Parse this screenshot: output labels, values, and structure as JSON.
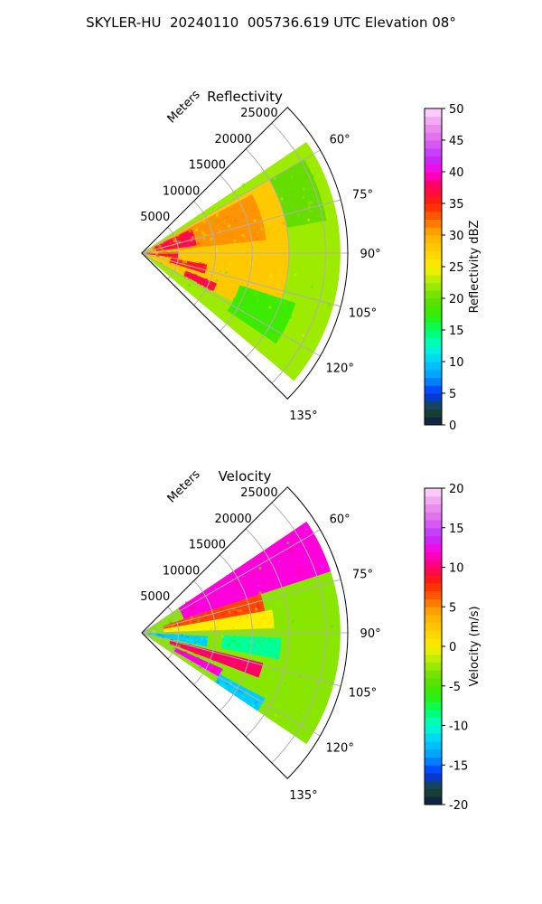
{
  "figure_title": "SKYLER-HU  20240110  005736.619 UTC Elevation 08°",
  "chart_data": [
    {
      "type": "heatmap",
      "subtype": "polar-sector (PPI sweep)",
      "title": "Reflectivity",
      "range_label": "Meters",
      "range_ticks": [
        5000,
        10000,
        15000,
        20000,
        25000
      ],
      "range_max": 28000,
      "azimuth_ticks_deg": [
        60,
        75,
        90,
        105,
        120,
        135
      ],
      "azimuth_range_deg": [
        45,
        135
      ],
      "grid": true,
      "colorbar": {
        "label": "Reflectivity dBZ",
        "min": 0,
        "max": 50,
        "ticks": [
          0,
          5,
          10,
          15,
          20,
          25,
          30,
          35,
          40,
          45,
          50
        ],
        "stops": [
          [
            0,
            "#0a1a4a"
          ],
          [
            2.5,
            "#1a4a2a"
          ],
          [
            5,
            "#0033ff"
          ],
          [
            7.5,
            "#0099ff"
          ],
          [
            10,
            "#00ccff"
          ],
          [
            12.5,
            "#00ffcc"
          ],
          [
            15,
            "#00ff66"
          ],
          [
            17.5,
            "#33ee00"
          ],
          [
            20,
            "#66dd00"
          ],
          [
            22.5,
            "#aaee00"
          ],
          [
            25,
            "#ffee00"
          ],
          [
            30,
            "#ffb000"
          ],
          [
            35,
            "#ff2200"
          ],
          [
            38,
            "#ff0066"
          ],
          [
            40,
            "#ff00dd"
          ],
          [
            42.5,
            "#bb33ff"
          ],
          [
            45,
            "#dd66ee"
          ],
          [
            47.5,
            "#ee99ee"
          ],
          [
            50,
            "#ffddff"
          ]
        ]
      },
      "echo_regions": [
        {
          "value": 22,
          "r": [
            0,
            27000
          ],
          "az": [
            56,
            130
          ]
        },
        {
          "value": 28,
          "r": [
            0,
            20000
          ],
          "az": [
            60,
            118
          ]
        },
        {
          "value": 31,
          "r": [
            1500,
            17000
          ],
          "az": [
            62,
            84
          ]
        },
        {
          "value": 37,
          "r": [
            2000,
            7500
          ],
          "az": [
            64,
            82
          ]
        },
        {
          "value": 36,
          "r": [
            0,
            5000
          ],
          "az": [
            88,
            98
          ]
        },
        {
          "value": 36,
          "r": [
            4000,
            9000
          ],
          "az": [
            100,
            108
          ]
        },
        {
          "value": 37,
          "r": [
            6500,
            11000
          ],
          "az": [
            112,
            118
          ]
        },
        {
          "value": 18,
          "r": [
            14000,
            22000
          ],
          "az": [
            108,
            124
          ]
        },
        {
          "value": 20,
          "r": [
            20000,
            25500
          ],
          "az": [
            60,
            80
          ]
        }
      ]
    },
    {
      "type": "heatmap",
      "subtype": "polar-sector (PPI sweep)",
      "title": "Velocity",
      "range_label": "Meters",
      "range_ticks": [
        5000,
        10000,
        15000,
        20000,
        25000
      ],
      "range_max": 28000,
      "azimuth_ticks_deg": [
        60,
        75,
        90,
        105,
        120,
        135
      ],
      "azimuth_range_deg": [
        45,
        135
      ],
      "grid": true,
      "colorbar": {
        "label": "Velocity (m/s)",
        "min": -20,
        "max": 20,
        "ticks": [
          -20,
          -15,
          -10,
          -5,
          0,
          5,
          10,
          15,
          20
        ],
        "stops": [
          [
            -20,
            "#0a1a4a"
          ],
          [
            -18,
            "#1a4a2a"
          ],
          [
            -16,
            "#0033ff"
          ],
          [
            -14,
            "#0099ff"
          ],
          [
            -12,
            "#00ccff"
          ],
          [
            -10,
            "#00ffcc"
          ],
          [
            -8,
            "#00ff66"
          ],
          [
            -6,
            "#33ee00"
          ],
          [
            -4,
            "#66dd00"
          ],
          [
            -2,
            "#aaee00"
          ],
          [
            0,
            "#ffee00"
          ],
          [
            4,
            "#ffb000"
          ],
          [
            8,
            "#ff2200"
          ],
          [
            10,
            "#ff0066"
          ],
          [
            12,
            "#ff00dd"
          ],
          [
            14,
            "#bb33ff"
          ],
          [
            16,
            "#dd66ee"
          ],
          [
            18,
            "#ee99ee"
          ],
          [
            20,
            "#ffddff"
          ]
        ]
      },
      "echo_regions": [
        {
          "value": -3,
          "r": [
            0,
            27000
          ],
          "az": [
            56,
            124
          ]
        },
        {
          "value": 12,
          "r": [
            6000,
            27000
          ],
          "az": [
            56,
            72
          ]
        },
        {
          "value": 7,
          "r": [
            3000,
            17000
          ],
          "az": [
            72,
            80
          ]
        },
        {
          "value": 0,
          "r": [
            3000,
            18000
          ],
          "az": [
            80,
            88
          ]
        },
        {
          "value": -9,
          "r": [
            11000,
            19000
          ],
          "az": [
            92,
            101
          ]
        },
        {
          "value": -12,
          "r": [
            1000,
            9000
          ],
          "az": [
            93,
            102
          ]
        },
        {
          "value": 10,
          "r": [
            4000,
            17000
          ],
          "az": [
            104,
            111
          ]
        },
        {
          "value": 12,
          "r": [
            5000,
            12000
          ],
          "az": [
            114,
            120
          ]
        },
        {
          "value": -12,
          "r": [
            12000,
            19000
          ],
          "az": [
            118,
            124
          ]
        }
      ]
    }
  ]
}
